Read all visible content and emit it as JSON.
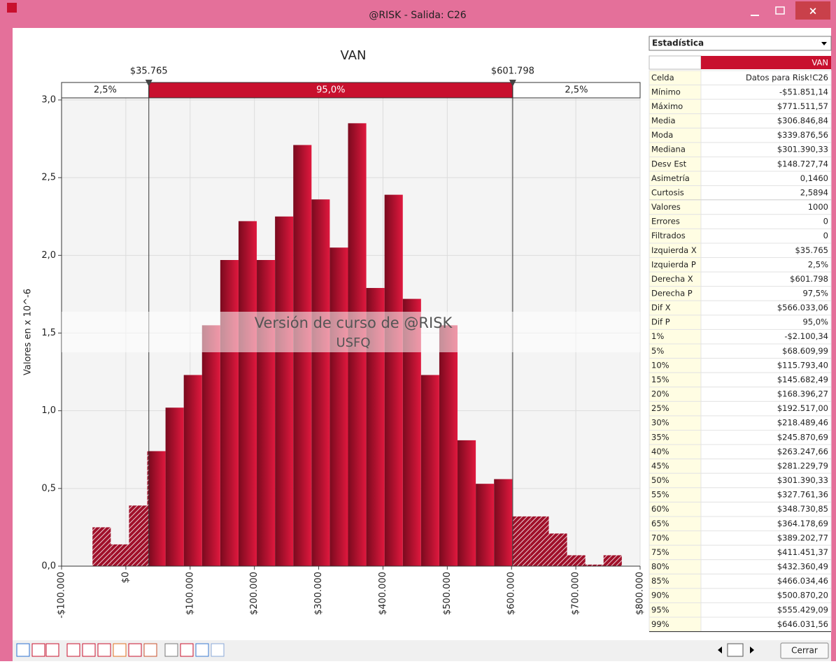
{
  "window": {
    "title": "@RISK - Salida: C26"
  },
  "chart_data": {
    "type": "histogram",
    "title": "VAN",
    "y_label": "Valores en x 10^-6",
    "color": "#c8102e",
    "grid": true,
    "bins": [
      -51851,
      -23459,
      4933,
      33324,
      61716,
      90108,
      118500,
      146891,
      175283,
      203675,
      232067,
      260458,
      288850,
      317242,
      345634,
      374026,
      402417,
      430809,
      459201,
      487593,
      515984,
      544376,
      572768,
      601160,
      629551,
      657943,
      686335,
      714727,
      743118,
      771510
    ],
    "values": [
      0.25,
      0.14,
      0.39,
      0.74,
      1.02,
      1.23,
      1.55,
      1.97,
      2.22,
      1.97,
      2.25,
      2.71,
      2.36,
      2.05,
      2.85,
      1.79,
      2.39,
      1.72,
      1.23,
      1.55,
      0.81,
      0.53,
      0.56,
      0.32,
      0.32,
      0.21,
      0.07,
      0.01,
      0.07
    ],
    "xlim": [
      -100000,
      800000
    ],
    "xticks": [
      {
        "value": -100000,
        "label": "-$100.000"
      },
      {
        "value": 0,
        "label": "$0"
      },
      {
        "value": 100000,
        "label": "$100.000"
      },
      {
        "value": 200000,
        "label": "$200.000"
      },
      {
        "value": 300000,
        "label": "$300.000"
      },
      {
        "value": 400000,
        "label": "$400.000"
      },
      {
        "value": 500000,
        "label": "$500.000"
      },
      {
        "value": 600000,
        "label": "$600.000"
      },
      {
        "value": 700000,
        "label": "$700.000"
      },
      {
        "value": 800000,
        "label": "$800.000"
      }
    ],
    "ylim": [
      0,
      3
    ],
    "yticks": [
      {
        "value": 0,
        "label": "0,0"
      },
      {
        "value": 0.5,
        "label": "0,5"
      },
      {
        "value": 1,
        "label": "1,0"
      },
      {
        "value": 1.5,
        "label": "1,5"
      },
      {
        "value": 2,
        "label": "2,0"
      },
      {
        "value": 2.5,
        "label": "2,5"
      },
      {
        "value": 3,
        "label": "3,0"
      }
    ],
    "delimiters": [
      {
        "value": 35765,
        "label": "$35.765"
      },
      {
        "value": 601798,
        "label": "$601.798"
      }
    ],
    "delimiter_percents": [
      {
        "value": 2.5,
        "label": "2,5%"
      },
      {
        "value": 95,
        "label": "95,0%"
      },
      {
        "value": 2.5,
        "label": "2,5%"
      }
    ],
    "watermark": [
      "Versión de curso de @RISK",
      "USFQ"
    ]
  },
  "stats": {
    "selector": "Estadística",
    "column": "VAN",
    "groups": [
      [
        [
          "Celda",
          "Datos para Risk!C26"
        ],
        [
          "Mínimo",
          "-$51.851,14"
        ],
        [
          "Máximo",
          "$771.511,57"
        ],
        [
          "Media",
          "$306.846,84"
        ],
        [
          "Moda",
          "$339.876,56"
        ],
        [
          "Mediana",
          "$301.390,33"
        ],
        [
          "Desv Est",
          "$148.727,74"
        ],
        [
          "Asimetría",
          "0,1460"
        ],
        [
          "Curtosis",
          "2,5894"
        ]
      ],
      [
        [
          "Valores",
          "1000"
        ],
        [
          "Errores",
          "0"
        ],
        [
          "Filtrados",
          "0"
        ]
      ],
      [
        [
          "Izquierda X",
          "$35.765"
        ],
        [
          "Izquierda P",
          "2,5%"
        ],
        [
          "Derecha X",
          "$601.798"
        ],
        [
          "Derecha P",
          "97,5%"
        ],
        [
          "Dif X",
          "$566.033,06"
        ],
        [
          "Dif P",
          "95,0%"
        ]
      ],
      [
        [
          "1%",
          "-$2.100,34"
        ],
        [
          "5%",
          "$68.609,99"
        ],
        [
          "10%",
          "$115.793,40"
        ],
        [
          "15%",
          "$145.682,49"
        ],
        [
          "20%",
          "$168.396,27"
        ],
        [
          "25%",
          "$192.517,00"
        ],
        [
          "30%",
          "$218.489,46"
        ],
        [
          "35%",
          "$245.870,69"
        ],
        [
          "40%",
          "$263.247,66"
        ],
        [
          "45%",
          "$281.229,79"
        ],
        [
          "50%",
          "$301.390,33"
        ],
        [
          "55%",
          "$327.761,36"
        ],
        [
          "60%",
          "$348.730,85"
        ],
        [
          "65%",
          "$364.178,69"
        ],
        [
          "70%",
          "$389.202,77"
        ],
        [
          "75%",
          "$411.451,37"
        ],
        [
          "80%",
          "$432.360,49"
        ],
        [
          "85%",
          "$466.034,46"
        ],
        [
          "90%",
          "$500.870,20"
        ],
        [
          "95%",
          "$555.429,09"
        ],
        [
          "99%",
          "$646.031,56"
        ]
      ]
    ]
  },
  "toolbar": {
    "close": "Cerrar"
  }
}
